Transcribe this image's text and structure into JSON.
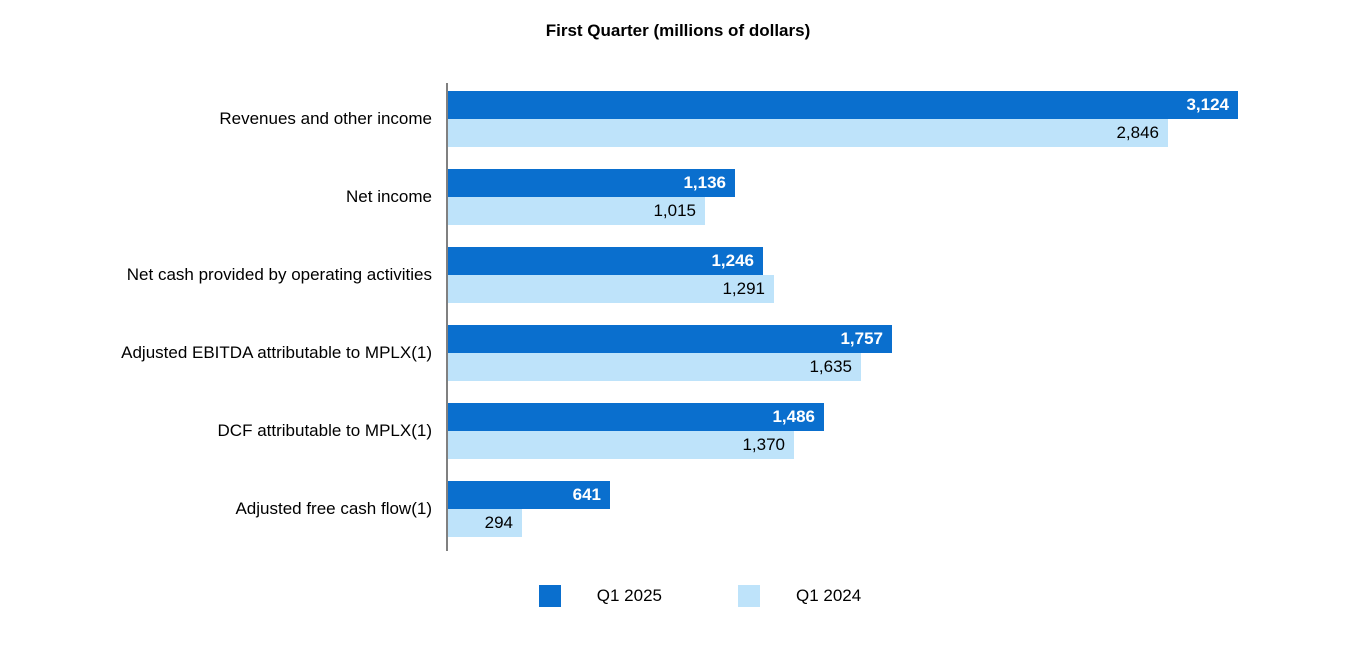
{
  "chart_data": {
    "type": "bar",
    "orientation": "horizontal",
    "title": "First Quarter (millions of dollars)",
    "categories": [
      "Revenues and other income",
      "Net income",
      "Net cash provided by operating activities",
      "Adjusted EBITDA attributable to MPLX(1)",
      "DCF attributable to MPLX(1)",
      "Adjusted free cash flow(1)"
    ],
    "series": [
      {
        "name": "Q1 2025",
        "color": "#0a6fce",
        "label_color": "#ffffff",
        "label_weight": "bold",
        "values": [
          3124,
          1136,
          1246,
          1757,
          1486,
          641
        ],
        "display_values": [
          "3,124",
          "1,136",
          "1,246",
          "1,757",
          "1,486",
          "641"
        ]
      },
      {
        "name": "Q1 2024",
        "color": "#bee3fa",
        "label_color": "#000000",
        "label_weight": "normal",
        "values": [
          2846,
          1015,
          1291,
          1635,
          1370,
          294
        ],
        "display_values": [
          "2,846",
          "1,015",
          "1,291",
          "1,635",
          "1,370",
          "294"
        ]
      }
    ],
    "value_label_position": "inside-end",
    "legend_position": "bottom-center",
    "axis": {
      "baseline_color": "#808080",
      "gridlines": false,
      "xlim_implied": [
        0,
        3600
      ]
    }
  }
}
